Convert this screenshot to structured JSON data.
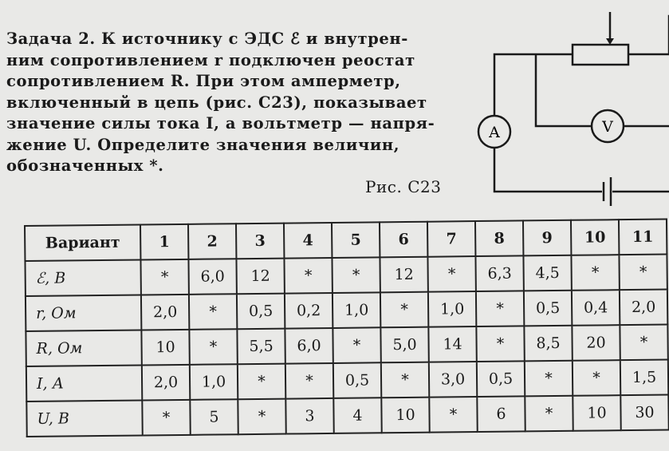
{
  "task": {
    "lines": [
      "Задача 2. К источнику с ЭДС ℰ и внутрен-",
      "ним сопротивлением r подключен реостат",
      "сопротивлением R. При этом амперметр,",
      "включенный в цепь (рис. С23), показывает",
      "значение силы тока I, а вольтметр — напря-",
      "жение U. Определите значения величин,",
      "обозначенных *."
    ]
  },
  "figure": {
    "caption": "Рис. С23",
    "ammeter_label": "A",
    "voltmeter_label": "V"
  },
  "table": {
    "header": [
      "Вариант",
      "1",
      "2",
      "3",
      "4",
      "5",
      "6",
      "7",
      "8",
      "9",
      "10",
      "11"
    ],
    "rows": [
      [
        "ℰ, В",
        "*",
        "6,0",
        "12",
        "*",
        "*",
        "12",
        "*",
        "6,3",
        "4,5",
        "*",
        "*"
      ],
      [
        "r, Ом",
        "2,0",
        "*",
        "0,5",
        "0,2",
        "1,0",
        "*",
        "1,0",
        "*",
        "0,5",
        "0,4",
        "2,0"
      ],
      [
        "R, Ом",
        "10",
        "*",
        "5,5",
        "6,0",
        "*",
        "5,0",
        "14",
        "*",
        "8,5",
        "20",
        "*"
      ],
      [
        "I, А",
        "2,0",
        "1,0",
        "*",
        "*",
        "0,5",
        "*",
        "3,0",
        "0,5",
        "*",
        "*",
        "1,5"
      ],
      [
        "U, В",
        "*",
        "5",
        "*",
        "3",
        "4",
        "10",
        "*",
        "6",
        "*",
        "10",
        "30"
      ]
    ]
  }
}
